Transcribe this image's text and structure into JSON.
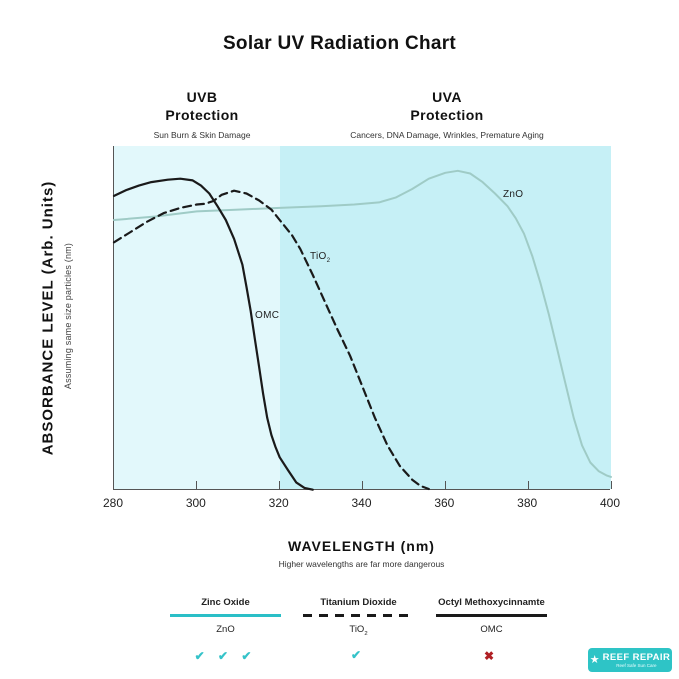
{
  "title": "Solar UV Radiation Chart",
  "sections": {
    "uvb": {
      "line1": "UVB",
      "line2": "Protection",
      "subtitle": "Sun Burn & Skin Damage"
    },
    "uva": {
      "line1": "UVA",
      "line2": "Protection",
      "subtitle": "Cancers, DNA Damage, Wrinkles, Premature Aging"
    }
  },
  "y_axis": {
    "label": "ABSORBANCE LEVEL (Arb. Units)",
    "sublabel": "Assuming same size particles (nm)"
  },
  "x_axis": {
    "label": "WAVELENGTH (nm)",
    "sublabel": "Higher wavelengths are far more dangerous",
    "ticks": [
      "280",
      "300",
      "320",
      "340",
      "360",
      "380",
      "400"
    ]
  },
  "plot_labels": {
    "tio2_base": "TiO",
    "tio2_sub": "2",
    "omc": "OMC",
    "zno": "ZnO"
  },
  "chart_data": {
    "type": "line",
    "title": "Solar UV Radiation Chart",
    "xlabel": "WAVELENGTH (nm)",
    "ylabel": "ABSORBANCE LEVEL (Arb. Units)",
    "x_range": [
      280,
      400
    ],
    "y_range": [
      0,
      1
    ],
    "grid": false,
    "legend_position": "bottom",
    "regions": [
      {
        "name": "UVB",
        "x_start": 280,
        "x_end": 320,
        "color": "#e2f8fb"
      },
      {
        "name": "UVA",
        "x_start": 320,
        "x_end": 400,
        "color": "#c6f0f6"
      }
    ],
    "series": [
      {
        "name": "ZnO",
        "full_name": "Zinc Oxide",
        "color": "#9fcbc6",
        "dash": false,
        "width": 2,
        "points": [
          [
            280,
            0.785
          ],
          [
            290,
            0.795
          ],
          [
            300,
            0.81
          ],
          [
            310,
            0.815
          ],
          [
            320,
            0.82
          ],
          [
            330,
            0.825
          ],
          [
            338,
            0.83
          ],
          [
            344,
            0.836
          ],
          [
            348,
            0.85
          ],
          [
            352,
            0.875
          ],
          [
            356,
            0.905
          ],
          [
            360,
            0.922
          ],
          [
            363,
            0.928
          ],
          [
            366,
            0.92
          ],
          [
            369,
            0.895
          ],
          [
            372,
            0.862
          ],
          [
            375,
            0.825
          ],
          [
            377,
            0.79
          ],
          [
            379,
            0.745
          ],
          [
            381,
            0.68
          ],
          [
            383,
            0.6
          ],
          [
            385,
            0.51
          ],
          [
            387,
            0.41
          ],
          [
            389,
            0.31
          ],
          [
            391,
            0.21
          ],
          [
            393,
            0.13
          ],
          [
            395,
            0.08
          ],
          [
            397,
            0.055
          ],
          [
            399,
            0.042
          ],
          [
            400,
            0.038
          ]
        ]
      },
      {
        "name": "TiO2",
        "full_name": "Titanium Dioxide",
        "color": "#1a1a1a",
        "dash": true,
        "width": 2.2,
        "points": [
          [
            280,
            0.72
          ],
          [
            284,
            0.75
          ],
          [
            288,
            0.78
          ],
          [
            292,
            0.805
          ],
          [
            296,
            0.82
          ],
          [
            300,
            0.83
          ],
          [
            302,
            0.832
          ],
          [
            304,
            0.84
          ],
          [
            306,
            0.858
          ],
          [
            309,
            0.87
          ],
          [
            312,
            0.862
          ],
          [
            315,
            0.842
          ],
          [
            318,
            0.815
          ],
          [
            320,
            0.785
          ],
          [
            323,
            0.74
          ],
          [
            325,
            0.7
          ],
          [
            328,
            0.625
          ],
          [
            331,
            0.545
          ],
          [
            334,
            0.465
          ],
          [
            337,
            0.39
          ],
          [
            340,
            0.3
          ],
          [
            343,
            0.21
          ],
          [
            346,
            0.13
          ],
          [
            349,
            0.07
          ],
          [
            352,
            0.03
          ],
          [
            354,
            0.012
          ],
          [
            356,
            0.003
          ]
        ]
      },
      {
        "name": "OMC",
        "full_name": "Octyl Methoxycinnamte",
        "color": "#1a1a1a",
        "dash": false,
        "width": 2.2,
        "points": [
          [
            280,
            0.855
          ],
          [
            283,
            0.872
          ],
          [
            286,
            0.885
          ],
          [
            289,
            0.895
          ],
          [
            293,
            0.902
          ],
          [
            296,
            0.905
          ],
          [
            299,
            0.9
          ],
          [
            301,
            0.885
          ],
          [
            303,
            0.862
          ],
          [
            305,
            0.825
          ],
          [
            307,
            0.785
          ],
          [
            309,
            0.73
          ],
          [
            311,
            0.655
          ],
          [
            312,
            0.59
          ],
          [
            313,
            0.52
          ],
          [
            314,
            0.44
          ],
          [
            315,
            0.36
          ],
          [
            316,
            0.28
          ],
          [
            317,
            0.21
          ],
          [
            318,
            0.16
          ],
          [
            319,
            0.125
          ],
          [
            320,
            0.095
          ],
          [
            322,
            0.058
          ],
          [
            324,
            0.022
          ],
          [
            326,
            0.006
          ],
          [
            328,
            0.001
          ]
        ]
      }
    ]
  },
  "legend": {
    "items": [
      {
        "title": "Zinc Oxide",
        "label_base": "ZnO",
        "label_sub": "",
        "line_style": "solid",
        "line_color": "#2abfc7",
        "marks": "✔ ✔ ✔",
        "mark_color": "#35c3c9"
      },
      {
        "title": "Titanium Dioxide",
        "label_base": "TiO",
        "label_sub": "2",
        "line_style": "dashed",
        "line_color": "#1a1a1a",
        "marks": "✔",
        "mark_color": "#35c3c9"
      },
      {
        "title": "Octyl Methoxycinnamte",
        "label_base": "OMC",
        "label_sub": "",
        "line_style": "solid",
        "line_color": "#1a1a1a",
        "marks": "✖",
        "mark_color": "#b01f24"
      }
    ]
  },
  "logo": {
    "star": "★",
    "brand": "REEF REPAIR",
    "tagline": "Reef Safe Sun Care",
    "bg_color": "#2ec4c6"
  }
}
